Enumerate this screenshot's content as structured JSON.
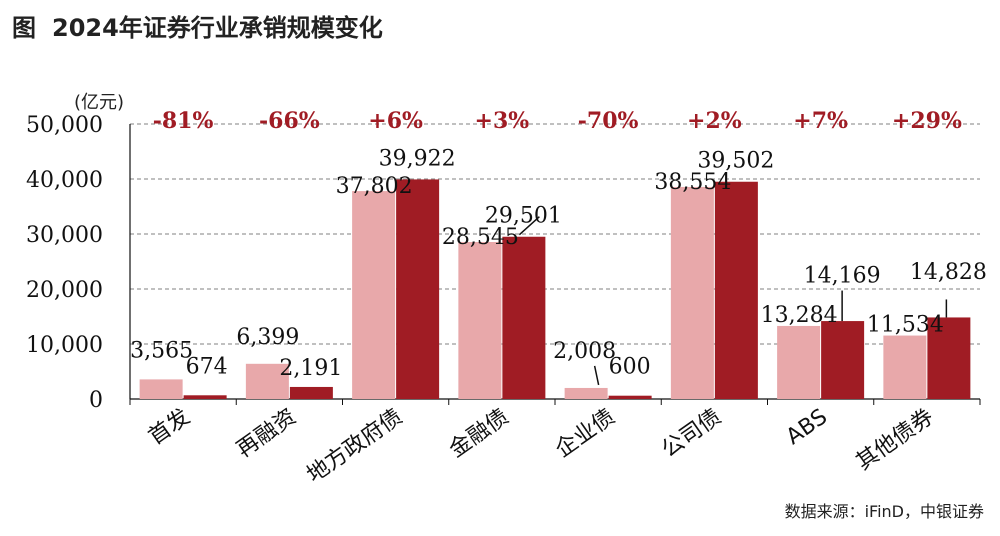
{
  "title_prefix": "图",
  "title": "2024年证券行业承销规模变化",
  "unit": "(亿元)",
  "source": "数据来源：iFinD，中银证券",
  "colors": {
    "light": "#E8A8AA",
    "dark": "#A01C24",
    "change": "#A01C24"
  },
  "chart_data": {
    "type": "bar",
    "categories": [
      "首发",
      "再融资",
      "地方政府债",
      "金融债",
      "企业债",
      "公司债",
      "ABS",
      "其他债券"
    ],
    "series": [
      {
        "values": [
          3565,
          6399,
          37802,
          28545,
          2008,
          38554,
          13284,
          11534
        ]
      },
      {
        "values": [
          674,
          2191,
          39922,
          29501,
          600,
          39502,
          14169,
          14828
        ]
      }
    ],
    "value_labels": [
      [
        "3,565",
        "6,399",
        "37,802",
        "28,545",
        "2,008",
        "38,554",
        "13,284",
        "11,534"
      ],
      [
        "674",
        "2,191",
        "39,922",
        "29,501",
        "600",
        "39,502",
        "14,169",
        "14,828"
      ]
    ],
    "changes": [
      "-81%",
      "-66%",
      "+6%",
      "+3%",
      "-70%",
      "+2%",
      "+7%",
      "+29%"
    ],
    "yticks": [
      "0",
      "10,000",
      "20,000",
      "30,000",
      "40,000",
      "50,000"
    ],
    "ylim": [
      0,
      50000
    ],
    "grid": true
  }
}
